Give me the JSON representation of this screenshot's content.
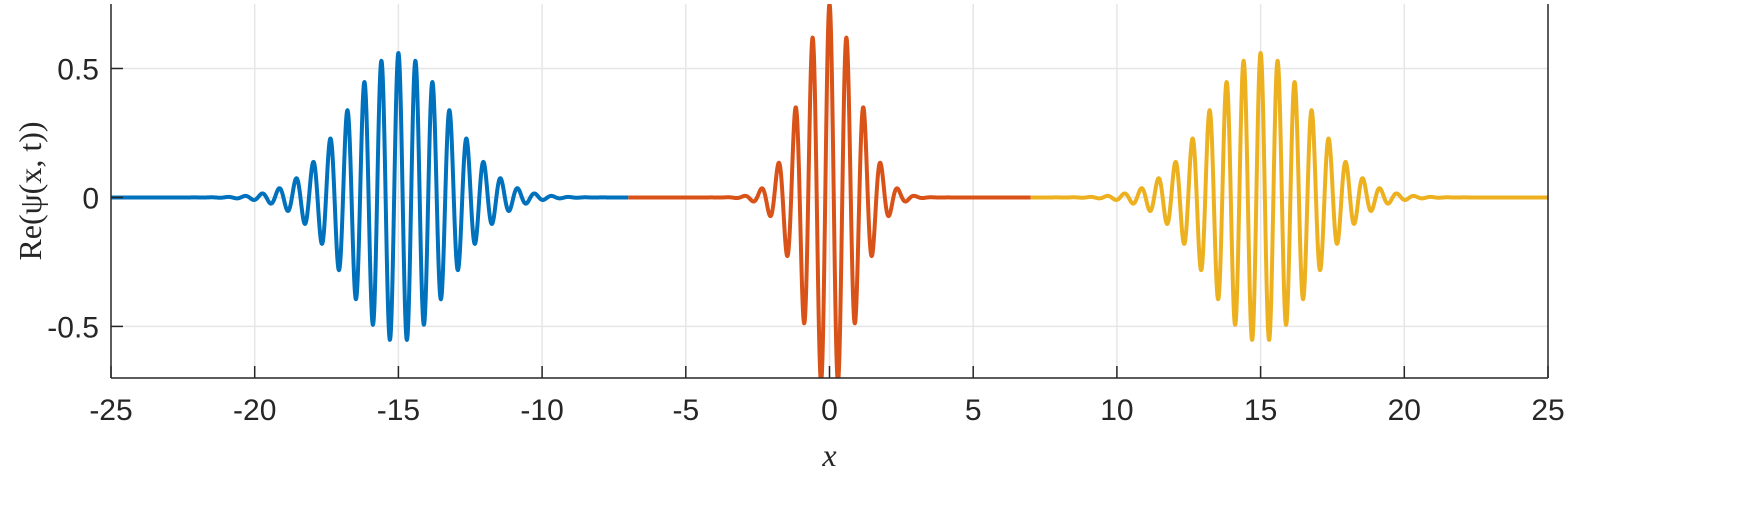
{
  "chart_data": {
    "type": "line",
    "xlabel": "x",
    "ylabel": "Re(ψ(x, t))",
    "xlim": [
      -25,
      25
    ],
    "ylim": [
      -0.7,
      0.75
    ],
    "xticks": [
      -25,
      -20,
      -15,
      -10,
      -5,
      0,
      5,
      10,
      15,
      20,
      25
    ],
    "xtick_labels": [
      "-25",
      "-20",
      "-15",
      "-10",
      "-5",
      "0",
      "5",
      "10",
      "15",
      "20",
      "25"
    ],
    "yticks": [
      -0.5,
      0,
      0.5
    ],
    "ytick_labels": [
      "-0.5",
      "0",
      "0.5"
    ],
    "grid": true,
    "box": true,
    "series": [
      {
        "color": "#0072BD",
        "x_range": [
          -25,
          -7
        ],
        "center": -15,
        "envelope_width": 2.5,
        "wavenumber": 10.6,
        "phase": 0,
        "peak_amplitude": 0.56,
        "x": [
          -21,
          -20,
          -19,
          -18,
          -17,
          -16,
          -15,
          -14,
          -13,
          -12,
          -11,
          -10,
          -9
        ],
        "y_envelope": [
          0.003,
          0.02,
          0.07,
          0.17,
          0.32,
          0.48,
          0.56,
          0.48,
          0.32,
          0.17,
          0.07,
          0.02,
          0.003
        ]
      },
      {
        "color": "#D95319",
        "x_range": [
          -7,
          7
        ],
        "center": 0,
        "envelope_width": 1.35,
        "wavenumber": 10.6,
        "phase": 0,
        "peak_amplitude": 0.75,
        "x": [
          -4,
          -3,
          -2,
          -1,
          0,
          1,
          2,
          3,
          4
        ],
        "y_envelope": [
          0.0,
          0.06,
          0.25,
          0.57,
          0.75,
          0.57,
          0.25,
          0.06,
          0.0
        ]
      },
      {
        "color": "#EDB120",
        "x_range": [
          7,
          25
        ],
        "center": 15,
        "envelope_width": 2.5,
        "wavenumber": 10.6,
        "phase": 0,
        "peak_amplitude": 0.56,
        "x": [
          9,
          10,
          11,
          12,
          13,
          14,
          15,
          16,
          17,
          18,
          19,
          20,
          21
        ],
        "y_envelope": [
          0.003,
          0.02,
          0.07,
          0.17,
          0.32,
          0.48,
          0.56,
          0.48,
          0.32,
          0.17,
          0.07,
          0.02,
          0.003
        ]
      }
    ]
  }
}
